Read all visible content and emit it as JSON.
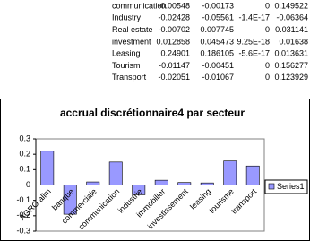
{
  "table": {
    "rows": [
      [
        "communication",
        "-0.00548",
        "-0.00173",
        "0",
        "0.149522"
      ],
      [
        "Industry",
        "-0.02428",
        "-0.05561",
        "-1.4E-17",
        "-0.06364"
      ],
      [
        "Real estate",
        "-0.00702",
        "0.007745",
        "0",
        "0.031141"
      ],
      [
        "investment",
        "0.012858",
        "0.045473",
        "9.25E-18",
        "0.01638"
      ],
      [
        "Leasing",
        "0.24901",
        "0.186105",
        "-5.6E-17",
        "0.013631"
      ],
      [
        "Tourism",
        "-0.01147",
        "-0.00451",
        "0",
        "0.156277"
      ],
      [
        "Transport",
        "-0.02051",
        "-0.01067",
        "0",
        "0.123929"
      ]
    ]
  },
  "chart_data": {
    "type": "bar",
    "title": "accrual discrétionnaire4 par secteur",
    "categories": [
      "AGRO alim",
      "banque",
      "commerciale",
      "communication",
      "industrie",
      "immobilier",
      "investissement",
      "leasing",
      "tourisme",
      "transport"
    ],
    "series": [
      {
        "name": "Series1",
        "color": "#9999ff",
        "values": [
          0.22,
          -0.19,
          0.02,
          0.149522,
          -0.06364,
          0.031141,
          0.01638,
          0.013631,
          0.156277,
          0.123929
        ]
      }
    ],
    "ylim": [
      -0.3,
      0.3
    ],
    "yticks": [
      -0.3,
      -0.2,
      -0.1,
      0,
      0.1,
      0.2,
      0.3
    ],
    "grid": false,
    "legend": "right"
  }
}
